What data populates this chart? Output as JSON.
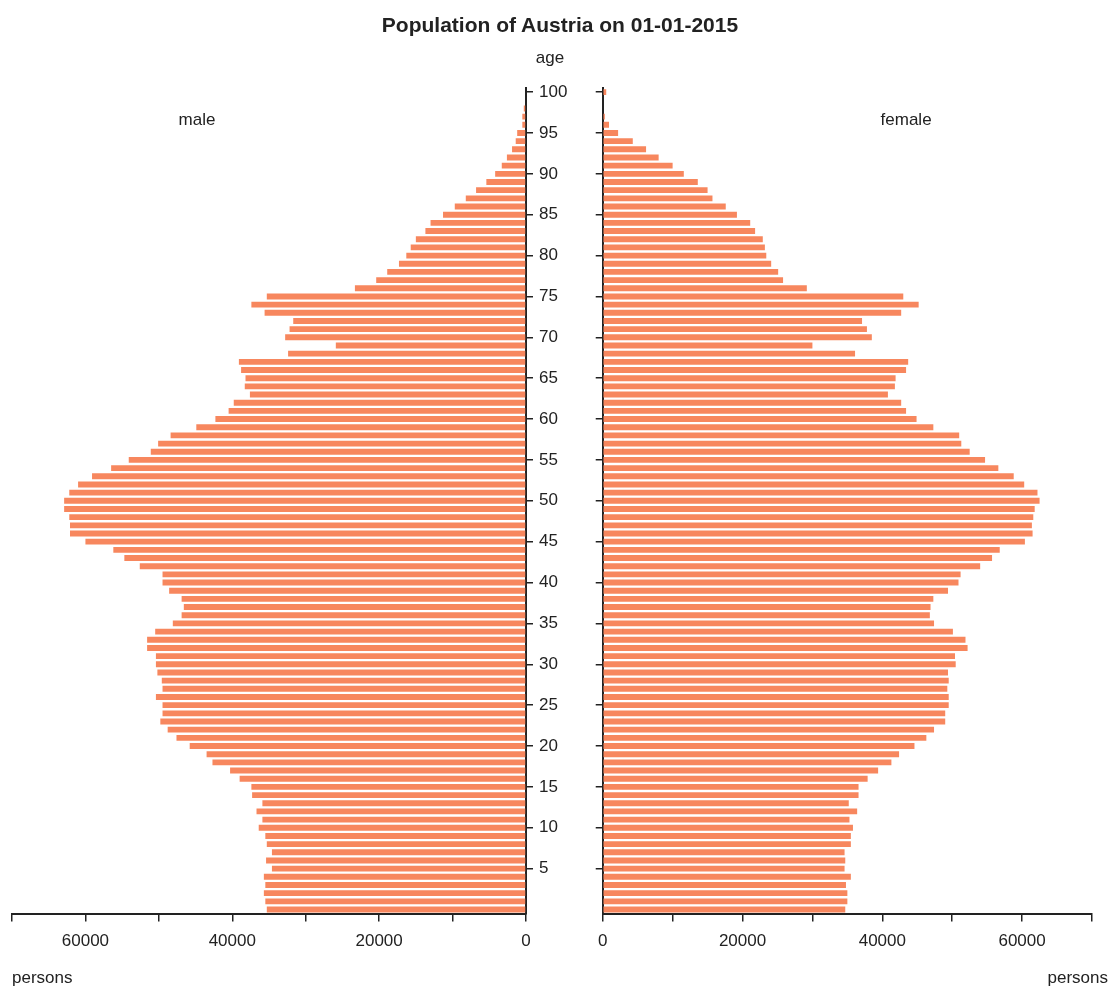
{
  "chart_data": [
    {
      "type": "bar",
      "orientation": "horizontal",
      "title": "Population of Austria on 01-01-2015",
      "xlabel": "persons",
      "ylabel": "age",
      "categories": [
        "100",
        null,
        null,
        null,
        null,
        "95",
        null,
        null,
        null,
        null,
        "90",
        null,
        null,
        null,
        null,
        "85",
        null,
        null,
        null,
        null,
        "80",
        null,
        null,
        null,
        null,
        "75",
        null,
        null,
        null,
        null,
        "70",
        null,
        null,
        null,
        null,
        "65",
        null,
        null,
        null,
        null,
        "60",
        null,
        null,
        null,
        null,
        "55",
        null,
        null,
        null,
        null,
        "50",
        null,
        null,
        null,
        null,
        "45",
        null,
        null,
        null,
        null,
        "40",
        null,
        null,
        null,
        null,
        "35",
        null,
        null,
        null,
        null,
        "30",
        null,
        null,
        null,
        null,
        "25",
        null,
        null,
        null,
        null,
        "20",
        null,
        null,
        null,
        null,
        "15",
        null,
        null,
        null,
        null,
        "10",
        null,
        null,
        null,
        null,
        "5",
        null,
        null,
        null,
        null,
        null
      ],
      "xlim": [
        70000,
        0
      ],
      "xticks": [
        0,
        {
          "value": 10000,
          "label": null
        },
        20000,
        {
          "value": 30000,
          "label": null
        },
        40000,
        {
          "value": 50000,
          "label": null
        },
        60000,
        {
          "value": 70000,
          "label": null
        }
      ],
      "series": [
        {
          "name": "male",
          "color": "#f7875e",
          "values": [
            null,
            null,
            300,
            500,
            500,
            1200,
            1400,
            1900,
            2600,
            3300,
            4200,
            5400,
            6800,
            8200,
            9700,
            11300,
            13000,
            13700,
            15000,
            15700,
            16300,
            17300,
            18900,
            20400,
            23300,
            35300,
            37400,
            35600,
            31700,
            32200,
            32800,
            25900,
            32400,
            39100,
            38800,
            38200,
            38300,
            37600,
            39800,
            40500,
            42300,
            44900,
            48400,
            50100,
            51100,
            54100,
            56500,
            59100,
            61000,
            62200,
            62900,
            62900,
            62200,
            62100,
            62100,
            60000,
            56200,
            54700,
            52600,
            49500,
            49500,
            48600,
            46900,
            46600,
            46900,
            48100,
            50500,
            51600,
            51600,
            50400,
            50400,
            50200,
            49600,
            49500,
            50400,
            49500,
            49500,
            49800,
            48800,
            47600,
            45800,
            43500,
            42700,
            40300,
            39000,
            37400,
            37300,
            35900,
            36700,
            35900,
            36400,
            35500,
            35300,
            34600,
            35400,
            34600,
            35700,
            35500,
            35700,
            35500,
            35300
          ]
        }
      ]
    },
    {
      "type": "bar",
      "orientation": "horizontal",
      "xlabel": "persons",
      "tick_labels": "x",
      "categories": [
        "100",
        null,
        null,
        null,
        null,
        "95",
        null,
        null,
        null,
        null,
        "90",
        null,
        null,
        null,
        null,
        "85",
        null,
        null,
        null,
        null,
        "80",
        null,
        null,
        null,
        null,
        "75",
        null,
        null,
        null,
        null,
        "70",
        null,
        null,
        null,
        null,
        "65",
        null,
        null,
        null,
        null,
        "60",
        null,
        null,
        null,
        null,
        "55",
        null,
        null,
        null,
        null,
        "50",
        null,
        null,
        null,
        null,
        "45",
        null,
        null,
        null,
        null,
        "40",
        null,
        null,
        null,
        null,
        "35",
        null,
        null,
        null,
        null,
        "30",
        null,
        null,
        null,
        null,
        "25",
        null,
        null,
        null,
        null,
        "20",
        null,
        null,
        null,
        null,
        "15",
        null,
        null,
        null,
        null,
        "10",
        null,
        null,
        null,
        null,
        "5",
        null,
        null,
        null,
        null,
        null
      ],
      "xlim": [
        0,
        70000
      ],
      "xticks": [
        0,
        {
          "value": 10000,
          "label": null
        },
        20000,
        {
          "value": 30000,
          "label": null
        },
        40000,
        {
          "value": 50000,
          "label": null
        },
        60000,
        {
          "value": 70000,
          "label": null
        }
      ],
      "series": [
        {
          "name": "female",
          "color": "#f7875e",
          "values": [
            500,
            null,
            null,
            300,
            900,
            2200,
            4300,
            6200,
            8000,
            10000,
            11600,
            13600,
            15000,
            15700,
            17600,
            19200,
            21100,
            21800,
            22900,
            23200,
            23400,
            24100,
            25100,
            25800,
            29200,
            43000,
            45200,
            42700,
            37100,
            37800,
            38500,
            30000,
            36100,
            43700,
            43400,
            41900,
            41800,
            40800,
            42700,
            43400,
            44900,
            47300,
            51000,
            51300,
            52500,
            54700,
            56600,
            58800,
            60300,
            62200,
            62500,
            61800,
            61600,
            61400,
            61500,
            60400,
            56800,
            55700,
            54000,
            51200,
            50900,
            49400,
            47300,
            46900,
            46800,
            47400,
            50100,
            51900,
            52200,
            50400,
            50500,
            49400,
            49500,
            49300,
            49500,
            49500,
            49000,
            49000,
            47400,
            46300,
            44600,
            42400,
            41300,
            39400,
            37900,
            36600,
            36600,
            35200,
            36400,
            35300,
            35800,
            35500,
            35500,
            34600,
            34700,
            34600,
            35500,
            34800,
            35000,
            35000,
            34700
          ]
        }
      ]
    }
  ]
}
